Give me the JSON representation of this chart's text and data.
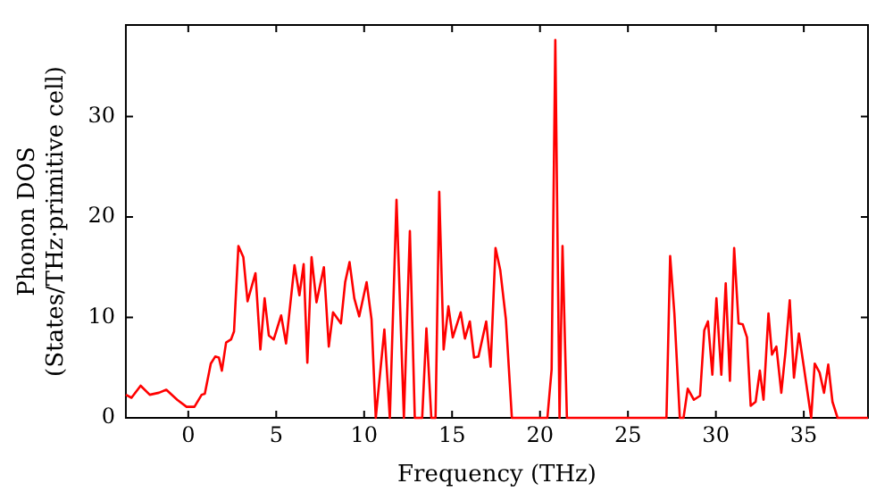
{
  "chart_data": {
    "type": "line",
    "xlabel": "Frequency (THz)",
    "ylabel": "Phonon DOS\n(States/THz·primitive cell)",
    "xlim": [
      -3.55,
      38.65
    ],
    "ylim": [
      0,
      39.1
    ],
    "xticks": [
      0,
      5,
      10,
      15,
      20,
      25,
      30,
      35
    ],
    "yticks": [
      0,
      10,
      20,
      30
    ],
    "grid": false,
    "legend": false,
    "marker": "none",
    "line_style": "solid",
    "series": [
      {
        "color": "#ff0000",
        "x": [
          -3.55,
          -3.23,
          -2.71,
          -2.19,
          -1.67,
          -1.25,
          -0.63,
          -0.1,
          0.35,
          0.76,
          0.94,
          1.28,
          1.53,
          1.74,
          1.91,
          2.15,
          2.43,
          2.6,
          2.85,
          3.13,
          3.37,
          3.82,
          4.1,
          4.34,
          4.58,
          4.86,
          5.28,
          5.56,
          6.04,
          6.32,
          6.56,
          6.77,
          7.01,
          7.29,
          7.71,
          7.99,
          8.23,
          8.68,
          8.92,
          9.17,
          9.44,
          9.72,
          10.14,
          10.42,
          10.66,
          11.15,
          11.46,
          11.84,
          12.26,
          12.6,
          12.88,
          13.3,
          13.54,
          13.82,
          14.06,
          14.27,
          14.52,
          14.79,
          15.04,
          15.49,
          15.73,
          16.01,
          16.25,
          16.5,
          16.94,
          17.19,
          17.47,
          17.74,
          18.06,
          18.4,
          20.42,
          20.66,
          20.87,
          21.11,
          21.28,
          21.53,
          27.19,
          27.4,
          27.64,
          27.95,
          28.16,
          28.4,
          28.75,
          29.1,
          29.34,
          29.55,
          29.8,
          30.03,
          30.31,
          30.56,
          30.8,
          31.04,
          31.29,
          31.53,
          31.77,
          31.98,
          32.26,
          32.5,
          32.71,
          32.99,
          33.19,
          33.44,
          33.72,
          33.96,
          34.2,
          34.44,
          34.72,
          35.0,
          35.42,
          35.62,
          35.9,
          36.15,
          36.39,
          36.63,
          36.92,
          38.65
        ],
        "values": [
          2.3,
          2.0,
          3.2,
          2.3,
          2.5,
          2.8,
          1.8,
          1.1,
          1.1,
          2.3,
          2.4,
          5.4,
          6.1,
          6.0,
          4.7,
          7.5,
          7.8,
          8.6,
          17.1,
          16.0,
          11.6,
          14.4,
          6.8,
          11.9,
          8.2,
          7.8,
          10.2,
          7.4,
          15.2,
          12.2,
          15.3,
          5.5,
          16.0,
          11.5,
          15.0,
          7.1,
          10.5,
          9.4,
          13.5,
          15.5,
          11.9,
          10.1,
          13.5,
          9.8,
          0,
          8.8,
          0,
          21.7,
          0,
          18.6,
          0,
          0,
          8.9,
          0,
          0,
          22.5,
          6.8,
          11.1,
          8.0,
          10.5,
          7.9,
          9.6,
          6.0,
          6.1,
          9.6,
          5.1,
          16.9,
          14.7,
          9.8,
          0,
          0,
          4.8,
          37.6,
          0,
          17.1,
          0,
          0,
          16.1,
          10.4,
          0,
          0,
          2.9,
          1.8,
          2.2,
          8.7,
          9.6,
          4.3,
          11.9,
          4.3,
          13.4,
          3.7,
          16.9,
          9.4,
          9.3,
          8.0,
          1.2,
          1.6,
          4.7,
          1.8,
          10.4,
          6.3,
          7.1,
          2.5,
          6.6,
          11.7,
          4.0,
          8.4,
          5.1,
          0,
          5.4,
          4.5,
          2.5,
          5.3,
          1.6,
          0,
          0
        ]
      }
    ]
  }
}
